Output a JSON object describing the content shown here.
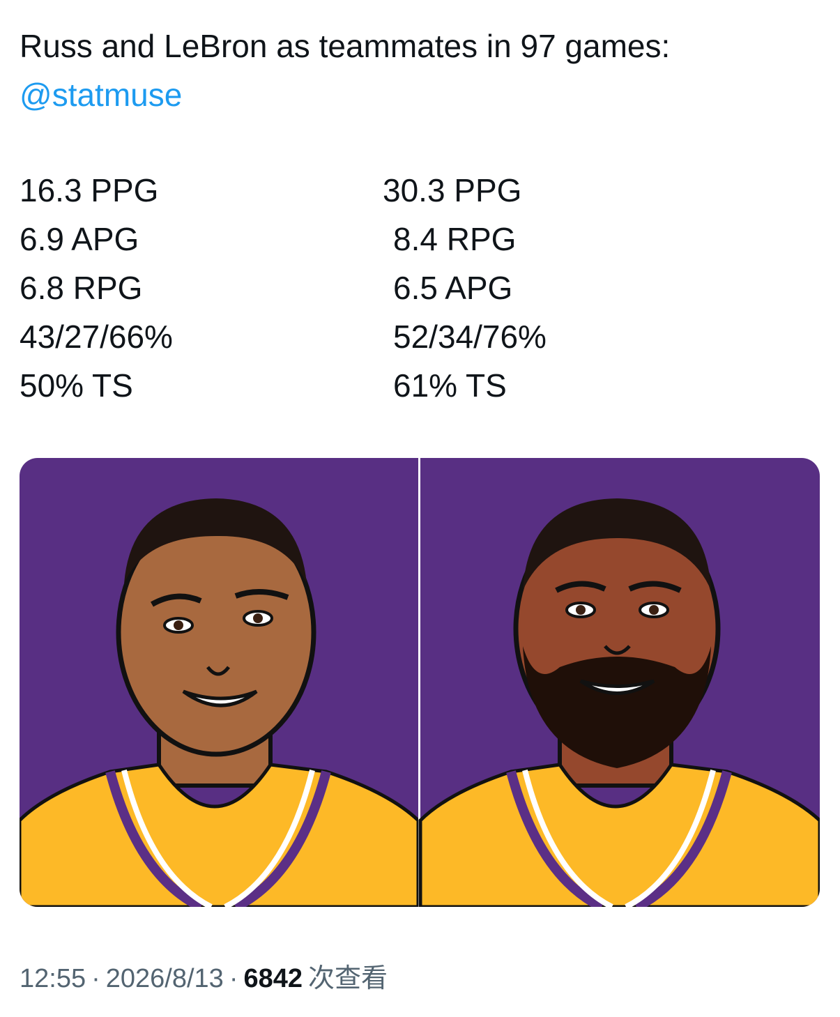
{
  "tweet": {
    "text": "Russ and LeBron as teammates in 97 games:",
    "mention": "@statmuse",
    "stats_left": [
      "16.3 PPG",
      "6.9 APG",
      "6.8 RPG",
      "43/27/66%",
      "50% TS"
    ],
    "stats_right": [
      "30.3 PPG",
      "8.4 RPG",
      "6.5 APG",
      "52/34/76%",
      "61% TS"
    ],
    "footer": {
      "time": "12:55",
      "separator": "·",
      "date": "2026/8/13",
      "views": 6842,
      "views_label": "次查看"
    }
  }
}
